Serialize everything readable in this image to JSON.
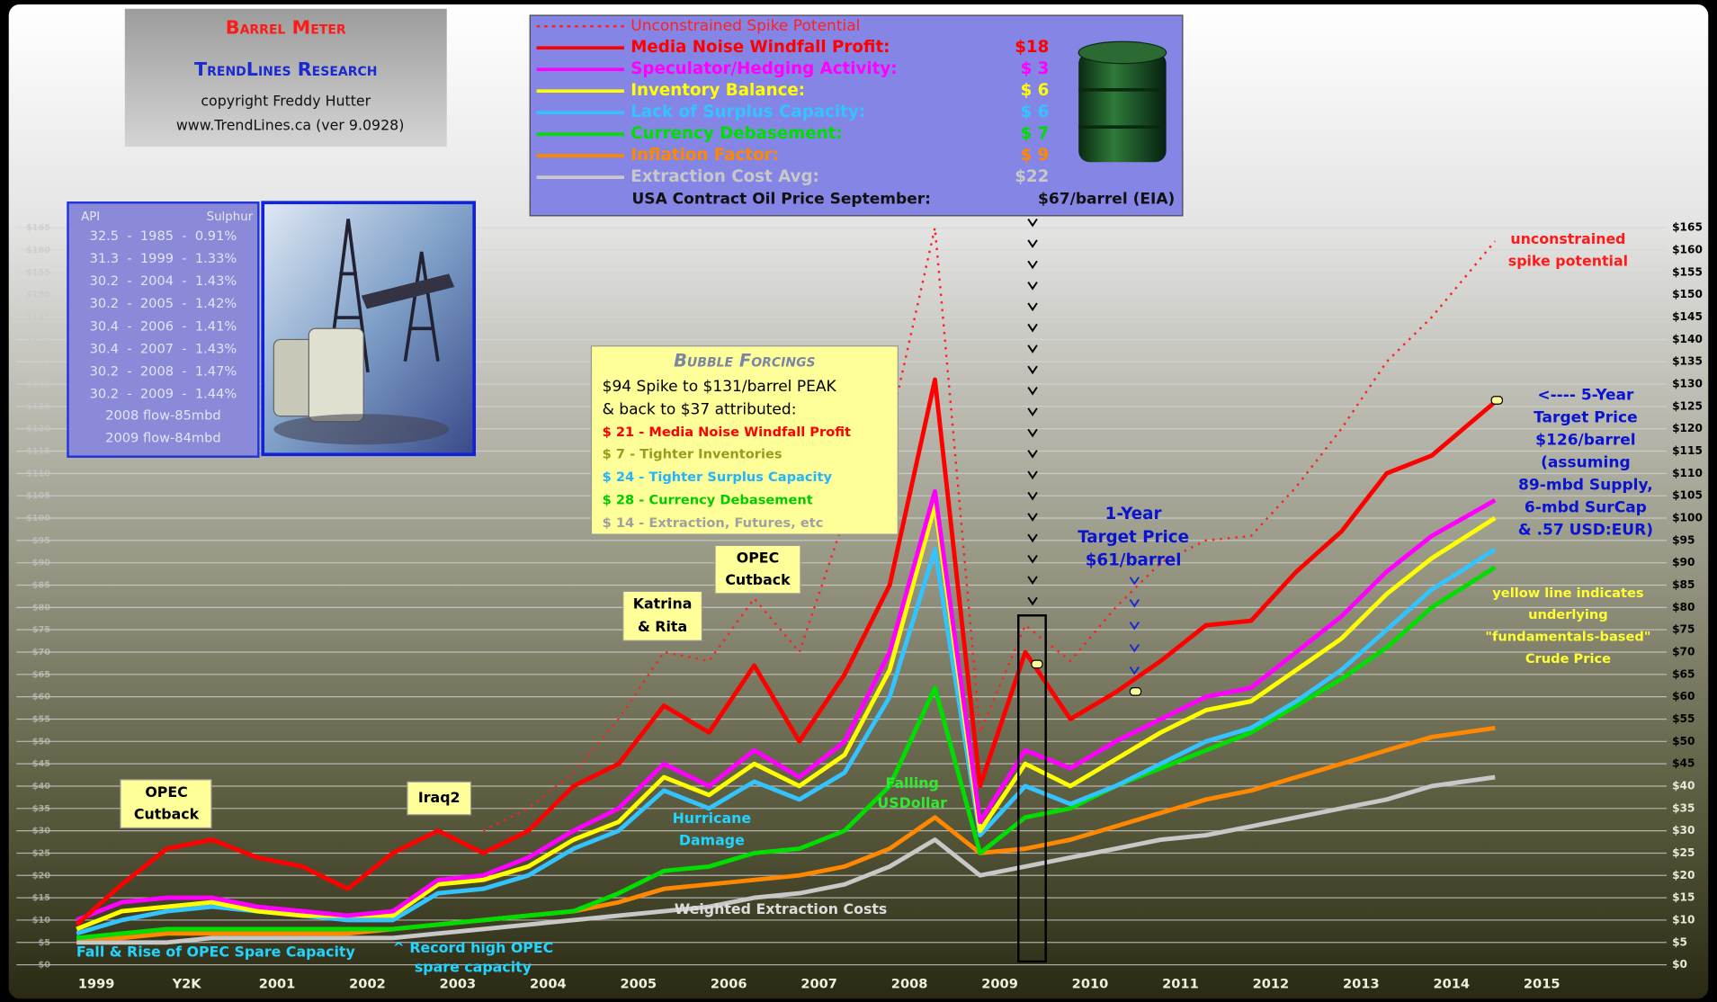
{
  "chart_data": {
    "type": "line",
    "title": "Barrel Meter",
    "subtitle": "TrendLines Research",
    "credits": [
      "copyright Freddy Hutter",
      "www.TrendLines.ca  (ver 9.0928)"
    ],
    "x": [
      1999,
      1999.5,
      2000,
      2000.5,
      2001,
      2001.5,
      2002,
      2002.5,
      2003,
      2003.5,
      2004,
      2004.5,
      2005,
      2005.5,
      2006,
      2006.5,
      2007,
      2007.5,
      2008,
      2008.5,
      2009,
      2009.5,
      2010,
      2010.5,
      2011,
      2011.5,
      2012,
      2012.5,
      2013,
      2013.5,
      2014,
      2014.7
    ],
    "xlim": [
      1999,
      2016.6
    ],
    "xticks": [
      1999,
      {
        "value": 2000,
        "label": "Y2K"
      },
      2001,
      2002,
      2003,
      2004,
      2005,
      2006,
      2007,
      2008,
      2009,
      2010,
      2011,
      2012,
      2013,
      2014,
      2015
    ],
    "ylim": [
      0,
      165
    ],
    "yticks": [
      {
        "value": 0,
        "label": "$0"
      },
      {
        "value": 5,
        "label": "$5"
      },
      {
        "value": 10,
        "label": "$10"
      },
      {
        "value": 15,
        "label": "$15"
      },
      {
        "value": 20,
        "label": "$20"
      },
      {
        "value": 25,
        "label": "$25"
      },
      {
        "value": 30,
        "label": "$30"
      },
      {
        "value": 35,
        "label": "$35"
      },
      {
        "value": 40,
        "label": "$40"
      },
      {
        "value": 45,
        "label": "$45"
      },
      {
        "value": 50,
        "label": "$50"
      },
      {
        "value": 55,
        "label": "$55"
      },
      {
        "value": 60,
        "label": "$60"
      },
      {
        "value": 65,
        "label": "$65"
      },
      {
        "value": 70,
        "label": "$70"
      },
      {
        "value": 75,
        "label": "$75"
      },
      {
        "value": 80,
        "label": "$80"
      },
      {
        "value": 85,
        "label": "$85"
      },
      {
        "value": 90,
        "label": "$90"
      },
      {
        "value": 95,
        "label": "$95"
      },
      {
        "value": 100,
        "label": "$100"
      },
      {
        "value": 105,
        "label": "$105"
      },
      {
        "value": 110,
        "label": "$110"
      },
      {
        "value": 115,
        "label": "$115"
      },
      {
        "value": 120,
        "label": "$120"
      },
      {
        "value": 125,
        "label": "$125"
      },
      {
        "value": 130,
        "label": "$130"
      },
      {
        "value": 135,
        "label": "$135"
      },
      {
        "value": 140,
        "label": "$140"
      },
      {
        "value": 145,
        "label": "$145"
      },
      {
        "value": 150,
        "label": "$150"
      },
      {
        "value": 155,
        "label": "$155"
      },
      {
        "value": 160,
        "label": "$160"
      },
      {
        "value": 165,
        "label": "$165"
      }
    ],
    "grid": true,
    "series": [
      {
        "name": "Unconstrained Spike Potential",
        "color": "#ff2020",
        "dashed": true,
        "values": [
          null,
          null,
          null,
          null,
          null,
          null,
          null,
          null,
          null,
          30,
          35,
          43,
          55,
          70,
          68,
          82,
          70,
          100,
          120,
          165,
          52,
          76,
          68,
          80,
          90,
          95,
          96,
          107,
          120,
          135,
          145,
          162
        ]
      },
      {
        "name": "Media Noise Windfall Profit:",
        "legend_value": "$18",
        "color": "#ff0000",
        "values": [
          9,
          18,
          26,
          28,
          24,
          22,
          17,
          25,
          30,
          25,
          30,
          40,
          45,
          58,
          52,
          67,
          50,
          65,
          85,
          131,
          40,
          70,
          55,
          61,
          68,
          76,
          77,
          88,
          97,
          110,
          114,
          126
        ]
      },
      {
        "name": "Speculator/Hedging Activity:",
        "legend_value": "$ 3",
        "color": "#ff00ff",
        "values": [
          10,
          14,
          15,
          15,
          13,
          12,
          11,
          12,
          19,
          20,
          24,
          30,
          35,
          45,
          40,
          48,
          42,
          50,
          70,
          106,
          32,
          48,
          44,
          50,
          55,
          60,
          62,
          70,
          78,
          88,
          96,
          104
        ]
      },
      {
        "name": "Inventory Balance:",
        "legend_value": "$ 6",
        "color": "#ffff00",
        "values": [
          8,
          12,
          13,
          14,
          12,
          11,
          11,
          11,
          18,
          19,
          22,
          28,
          32,
          42,
          38,
          45,
          40,
          47,
          66,
          103,
          30,
          45,
          40,
          46,
          52,
          57,
          59,
          66,
          73,
          83,
          91,
          100
        ]
      },
      {
        "name": "Lack of Surplus Capacity:",
        "legend_value": "$ 6",
        "color": "#33c4ff",
        "values": [
          7,
          10,
          12,
          13,
          12,
          11,
          10,
          10,
          16,
          17,
          20,
          26,
          30,
          39,
          35,
          41,
          37,
          43,
          60,
          93,
          29,
          40,
          36,
          40,
          45,
          50,
          53,
          59,
          66,
          75,
          84,
          93
        ]
      },
      {
        "name": "Currency Debasement:",
        "legend_value": "$ 7",
        "color": "#00dd00",
        "values": [
          6,
          7,
          8,
          8,
          8,
          8,
          8,
          8,
          9,
          10,
          11,
          12,
          16,
          21,
          22,
          25,
          26,
          30,
          40,
          62,
          25,
          33,
          35,
          40,
          44,
          48,
          52,
          58,
          64,
          71,
          80,
          89
        ]
      },
      {
        "name": "Inflation Factor:",
        "legend_value": "$ 9",
        "color": "#ff8800",
        "values": [
          6,
          6,
          7,
          7,
          7,
          7,
          7,
          8,
          9,
          10,
          11,
          12,
          14,
          17,
          18,
          19,
          20,
          22,
          26,
          33,
          25,
          26,
          28,
          31,
          34,
          37,
          39,
          42,
          45,
          48,
          51,
          53
        ]
      },
      {
        "name": "Extraction Cost Avg:",
        "legend_value": "$22",
        "color": "#c8c8c8",
        "values": [
          5,
          5,
          5,
          6,
          6,
          6,
          6,
          6,
          7,
          8,
          9,
          10,
          11,
          12,
          13,
          15,
          16,
          18,
          22,
          28,
          20,
          22,
          24,
          26,
          28,
          29,
          31,
          33,
          35,
          37,
          40,
          42
        ]
      }
    ],
    "price_note": {
      "label": "USA Contract Oil Price September:",
      "value": "$67/barrel (EIA)"
    },
    "api_table": {
      "header": [
        "API",
        "Sulphur"
      ],
      "rows": [
        "32.5  -  1985  -  0.91%",
        "31.3  -  1999  -  1.33%",
        "30.2  -  2004  -  1.43%",
        "30.2  -  2005  -  1.42%",
        "30.4  -  2006  -  1.41%",
        "30.4  -  2007  -  1.43%",
        "30.2  -  2008  -  1.47%",
        "30.2  -  2009  -  1.44%"
      ],
      "notes": [
        "2008 flow-85mbd",
        "2009 flow-84mbd"
      ]
    },
    "bubble_forcings": {
      "title": "Bubble Forcings",
      "lines": [
        "$94 Spike to $131/barrel PEAK",
        "& back to $37 attributed:"
      ],
      "items": [
        "$ 21 - Media Noise Windfall Profit",
        "$   7 - Tighter Inventories",
        "$ 24 - Tighter Surplus Capacity",
        "$ 28 - Currency Debasement",
        "$ 14 - Extraction, Futures, etc"
      ]
    },
    "annotations": [
      {
        "lines": [
          "OPEC",
          "Cutback"
        ]
      },
      {
        "lines": [
          "Iraq2"
        ]
      },
      {
        "lines": [
          "Katrina",
          "& Rita"
        ]
      },
      {
        "lines": [
          "OPEC",
          "Cutback"
        ]
      },
      {
        "lines": [
          "Hurricane",
          "Damage"
        ]
      },
      {
        "lines": [
          "Falling",
          "USDollar"
        ]
      },
      {
        "lines": [
          "Weighted Extraction Costs"
        ]
      },
      {
        "lines": [
          "Fall & Rise of OPEC Spare Capacity"
        ]
      },
      {
        "lines": [
          "^  Record high OPEC",
          "spare capacity"
        ]
      },
      {
        "lines": [
          "1-Year",
          "Target Price",
          "$61/barrel"
        ]
      },
      {
        "lines": [
          "<----  5-Year",
          "Target Price",
          "$126/barrel",
          "(assuming",
          "89-mbd Supply,",
          "6-mbd SurCap",
          "& .57 USD:EUR)"
        ]
      },
      {
        "lines": [
          "yellow line indicates",
          "underlying",
          "\"fundamentals-based\"",
          "Crude Price"
        ]
      },
      {
        "lines": [
          "unconstrained",
          "spike potential"
        ]
      }
    ]
  }
}
